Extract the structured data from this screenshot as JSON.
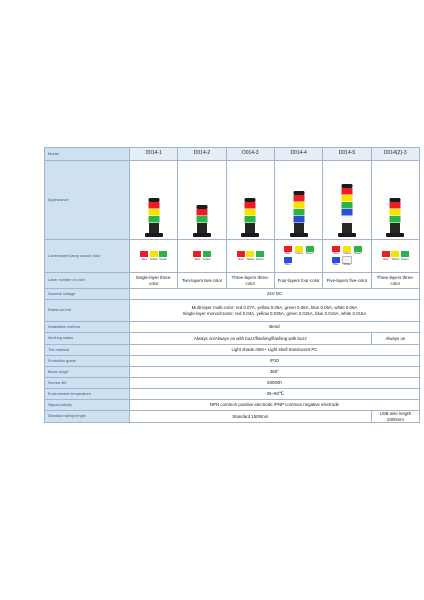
{
  "colors": {
    "red": "#ee1c24",
    "yellow": "#f5e300",
    "green": "#2db34a",
    "blue": "#2a4fd6",
    "white": "#f2f2f2"
  },
  "table": {
    "header": {
      "label": "Model",
      "models": [
        "D014-1",
        "D014-2",
        "D014-3",
        "D014-4",
        "D014-5",
        "D014(Z)-3"
      ]
    },
    "appearance": {
      "label": "Appearance",
      "lamps": [
        [
          "green",
          "yellow",
          "red"
        ],
        [
          "green",
          "red"
        ],
        [
          "green",
          "yellow",
          "red"
        ],
        [
          "blue",
          "green",
          "yellow",
          "red"
        ],
        [
          "white",
          "blue",
          "green",
          "yellow",
          "red"
        ],
        [
          "green",
          "yellow",
          "red"
        ]
      ]
    },
    "luminescent": {
      "label": "Luminescent lamp source color",
      "cells": [
        [
          {
            "c": "red",
            "t": "Red"
          },
          {
            "c": "yellow",
            "t": "Yellow"
          },
          {
            "c": "green",
            "t": "Green"
          }
        ],
        [
          {
            "c": "red",
            "t": "Red"
          },
          {
            "c": "green",
            "t": "Green"
          }
        ],
        [
          {
            "c": "red",
            "t": "Red"
          },
          {
            "c": "yellow",
            "t": "Yellow"
          },
          {
            "c": "green",
            "t": "Green"
          }
        ],
        [
          {
            "c": "red",
            "t": "Red"
          },
          {
            "c": "yellow",
            "t": "Yellow"
          },
          {
            "c": "green",
            "t": "Green"
          },
          {
            "c": "blue",
            "t": "Blue"
          }
        ],
        [
          {
            "c": "red",
            "t": "Red"
          },
          {
            "c": "yellow",
            "t": "Yellow"
          },
          {
            "c": "green",
            "t": "Green"
          },
          {
            "c": "blue",
            "t": "Blue"
          },
          {
            "c": "white",
            "t": "White"
          }
        ],
        [
          {
            "c": "red",
            "t": "Red"
          },
          {
            "c": "yellow",
            "t": "Yellow"
          },
          {
            "c": "green",
            "t": "Green"
          }
        ]
      ]
    },
    "layer": {
      "label": "Laser number of color",
      "values": [
        "Single-layer three-color",
        "Two-layers two-color",
        "Three-layers three-color",
        "Four-layers four-color",
        "Five-layers five-color",
        "Three-layers three-color"
      ]
    },
    "rows": [
      {
        "label": "Nominal voltage",
        "value": "24V DC"
      },
      {
        "label": "Rated current",
        "value": "Multi-layer multi-color: red 0.07A, yellow 0.09A, green 0.06A, blue 0.06A, white 0.06A\nSingle-layer monochrome: red 0.03A, yellow 0.035A, green 0.015A, blue 0.015A, white 0.015A"
      },
      {
        "label": "Installation method",
        "value": "Bend"
      }
    ],
    "working": {
      "label": "Working status",
      "main": "Always on/Always on with buzz/flashing/flashing with buzz",
      "last": "Always on"
    },
    "rows2": [
      {
        "label": "The material",
        "value": "Light shade ABS+ Light shell translucent PC"
      },
      {
        "label": "Protection grade",
        "value": "IP20"
      },
      {
        "label": "Beam Angle",
        "value": "360°"
      },
      {
        "label": "Service life",
        "value": "50000h"
      },
      {
        "label": "Environment temperature",
        "value": "-25~55℃"
      },
      {
        "label": "Signal polarity",
        "value": "NPN common positive electrode /PNP common negative electrode"
      }
    ],
    "wiring": {
      "label": "Standard wiring length",
      "main": "Standard 1500mm",
      "last": "USB wire length 1000mm"
    }
  }
}
